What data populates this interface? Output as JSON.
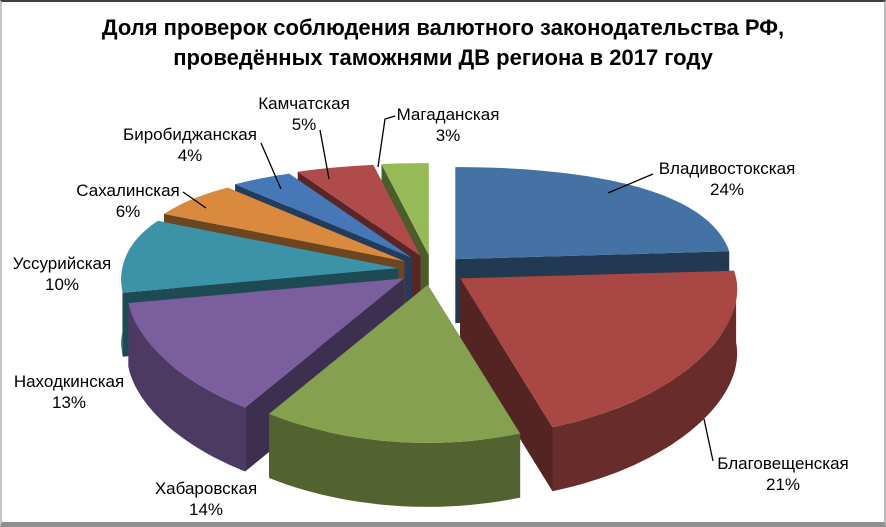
{
  "title": {
    "line1": "Доля проверок соблюдения валютного законодательства РФ,",
    "line2": "проведённых таможнями ДВ региона в 2017 году"
  },
  "chart_data": {
    "type": "pie",
    "projection": "3d-exploded",
    "start_angle_deg": 0,
    "direction": "clockwise",
    "legend_position": "none",
    "label_format": "name + percent",
    "percent_suffix": "%",
    "slices": [
      {
        "label": "Владивостокская",
        "value_pct": 24,
        "color": "#4472A4"
      },
      {
        "label": "Благовещенская",
        "value_pct": 21,
        "color": "#A84743"
      },
      {
        "label": "Хабаровская",
        "value_pct": 14,
        "color": "#85A04E"
      },
      {
        "label": "Находкинская",
        "value_pct": 13,
        "color": "#7A5E9E"
      },
      {
        "label": "Уссурийская",
        "value_pct": 10,
        "color": "#3C93A8"
      },
      {
        "label": "Сахалинская",
        "value_pct": 6,
        "color": "#D98A3F"
      },
      {
        "label": "Биробиджанская",
        "value_pct": 4,
        "color": "#4678B8"
      },
      {
        "label": "Камчатская",
        "value_pct": 5,
        "color": "#AF4B4B"
      },
      {
        "label": "Магаданская",
        "value_pct": 3,
        "color": "#97BA58"
      }
    ]
  }
}
